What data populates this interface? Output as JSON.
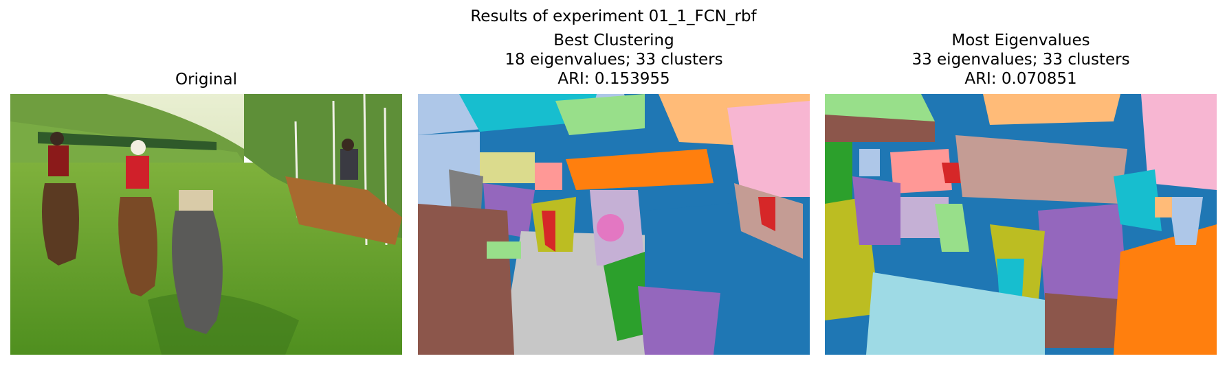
{
  "figure": {
    "suptitle": "Results of experiment 01_1_FCN_rbf"
  },
  "panels": [
    {
      "lines": [
        "Original"
      ]
    },
    {
      "lines": [
        "Best Clustering",
        "18 eigenvalues; 33 clusters",
        "ARI: 0.153955"
      ]
    },
    {
      "lines": [
        "Most Eigenvalues",
        "33 eigenvalues; 33 clusters",
        "ARI: 0.070851"
      ]
    }
  ],
  "palette": {
    "blue": "#1f77b4",
    "lightblue": "#aec7e8",
    "orange": "#ff7f0e",
    "peach": "#ffbb78",
    "green": "#2ca02c",
    "lightgreen": "#98df8a",
    "red": "#d62728",
    "pink": "#ff9896",
    "purple": "#9467bd",
    "lavender": "#c5b0d5",
    "brown": "#8c564b",
    "rosybrown": "#c49c94",
    "magenta": "#e377c2",
    "lightpink": "#f7b6d2",
    "gray": "#7f7f7f",
    "lightgray": "#c7c7c7",
    "olive": "#bcbd22",
    "khaki": "#dbdb8d",
    "cyan": "#17becf",
    "lightcyan": "#9edae5"
  }
}
